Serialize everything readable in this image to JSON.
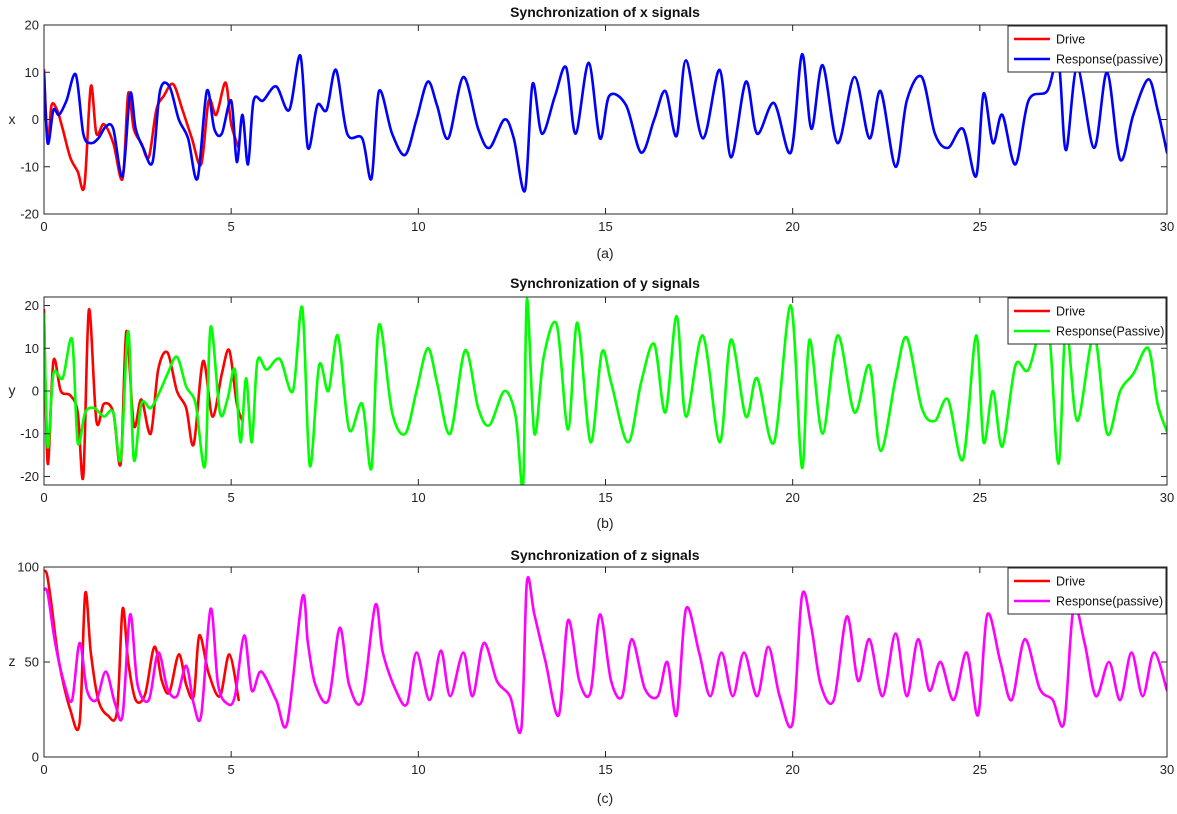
{
  "figure": {
    "panels": [
      {
        "title": "Synchronization of x signals",
        "ylabel": "x",
        "caption": "(a)",
        "ylim": [
          -20,
          20
        ],
        "yticks": [
          -20,
          -10,
          0,
          10,
          20
        ],
        "xlim": [
          0,
          30
        ],
        "xticks": [
          0,
          5,
          10,
          15,
          20,
          25,
          30
        ],
        "legend": [
          {
            "label": "Drive",
            "color": "#ff0000"
          },
          {
            "label": "Response(passive)",
            "color": "#0000ff"
          }
        ]
      },
      {
        "title": "Synchronization of y signals",
        "ylabel": "y",
        "caption": "(b)",
        "ylim": [
          -22,
          22
        ],
        "yticks": [
          -20,
          -10,
          0,
          10,
          20
        ],
        "xlim": [
          0,
          30
        ],
        "xticks": [
          0,
          5,
          10,
          15,
          20,
          25,
          30
        ],
        "legend": [
          {
            "label": "Drive",
            "color": "#ff0000"
          },
          {
            "label": "Response(Passive)",
            "color": "#00ff00"
          }
        ]
      },
      {
        "title": "Synchronization of z signals",
        "ylabel": "z",
        "caption": "(c)",
        "ylim": [
          0,
          100
        ],
        "yticks": [
          0,
          50,
          100
        ],
        "xlim": [
          0,
          30
        ],
        "xticks": [
          0,
          5,
          10,
          15,
          20,
          25,
          30
        ],
        "legend": [
          {
            "label": "Drive",
            "color": "#ff0000"
          },
          {
            "label": "Response(passive)",
            "color": "#ff00ff"
          }
        ]
      }
    ]
  },
  "chart_data": [
    {
      "type": "line",
      "title": "Synchronization of x signals",
      "xlabel": "",
      "ylabel": "x",
      "xlim": [
        0,
        30
      ],
      "ylim": [
        -20,
        20
      ],
      "grid": false,
      "legend_position": "top-right",
      "series": [
        {
          "name": "Drive",
          "color": "#ff0000",
          "x": [
            0,
            0.1,
            0.2,
            0.35,
            0.5,
            0.7,
            0.9,
            1.08,
            1.25,
            1.4,
            1.6,
            1.85,
            2.1,
            2.25,
            2.4,
            2.6,
            2.8,
            3.0,
            3.2,
            3.45,
            3.7,
            3.95,
            4.2,
            4.4,
            4.6,
            4.85,
            5.0,
            5.2
          ],
          "y": [
            10.5,
            -5,
            3,
            2,
            -2,
            -8,
            -11,
            -14,
            7,
            -3,
            -1,
            -5,
            -12.5,
            5.5,
            -2,
            -5,
            -8,
            2,
            5,
            7.5,
            2,
            -4,
            -9.5,
            4,
            1,
            7.8,
            -1,
            -6
          ]
        },
        {
          "name": "Response(passive)",
          "color": "#0000ff",
          "x": [
            0,
            0.1,
            0.25,
            0.4,
            0.6,
            0.85,
            1.05,
            1.25,
            1.45,
            1.65,
            1.85,
            2.1,
            2.3,
            2.45,
            2.65,
            2.9,
            3.1,
            3.35,
            3.6,
            3.85,
            4.1,
            4.35,
            4.55,
            4.75,
            5.0,
            5.15,
            5.3,
            5.45,
            5.6,
            5.85,
            6.2,
            6.55,
            6.85,
            7.05,
            7.3,
            7.55,
            7.8,
            8.1,
            8.5,
            8.75,
            8.95,
            9.3,
            9.65,
            9.95,
            10.25,
            10.5,
            10.8,
            11.2,
            11.6,
            11.9,
            12.3,
            12.55,
            12.85,
            13.05,
            13.3,
            13.65,
            13.95,
            14.2,
            14.55,
            14.85,
            15.1,
            15.55,
            15.95,
            16.3,
            16.6,
            16.9,
            17.15,
            17.6,
            18.05,
            18.35,
            18.75,
            19.05,
            19.5,
            19.95,
            20.25,
            20.5,
            20.8,
            21.2,
            21.65,
            22.05,
            22.35,
            22.75,
            23.05,
            23.45,
            23.8,
            24.15,
            24.55,
            24.9,
            25.1,
            25.35,
            25.6,
            25.95,
            26.3,
            26.8,
            27.1,
            27.3,
            27.6,
            28.05,
            28.4,
            28.75,
            29.1,
            29.5,
            29.75,
            30.0
          ],
          "y": [
            10,
            -5,
            2,
            1,
            4,
            9.5,
            -3,
            -5,
            -4,
            -1.5,
            -2,
            -12,
            5.5,
            -2,
            -6,
            -9,
            6,
            7,
            0,
            -4,
            -12.5,
            6,
            -2,
            -3,
            4,
            -9,
            1,
            -9.5,
            4,
            4,
            7,
            2,
            13.5,
            -6,
            3,
            2,
            10.5,
            -3,
            -4,
            -12.5,
            6,
            -3,
            -7.5,
            0,
            8,
            3,
            -4,
            9,
            -2,
            -6,
            0,
            -4,
            -15,
            7.5,
            -3,
            5,
            11,
            -3,
            12,
            -4,
            5,
            3,
            -7,
            0,
            6,
            -3.5,
            12.5,
            -4,
            10.5,
            -8,
            8,
            -3,
            3.5,
            -7,
            13.8,
            -2,
            11.5,
            -5,
            9,
            -4,
            6,
            -10,
            4,
            9,
            -3,
            -6,
            -2,
            -12,
            5.5,
            -5,
            1,
            -9.5,
            4,
            6,
            12.5,
            -6.5,
            11,
            -6,
            10,
            -8.5,
            1,
            8.5,
            2,
            -7
          ]
        }
      ]
    },
    {
      "type": "line",
      "title": "Synchronization of y signals",
      "xlabel": "",
      "ylabel": "y",
      "xlim": [
        0,
        30
      ],
      "ylim": [
        -22,
        22
      ],
      "grid": false,
      "legend_position": "top-right",
      "series": [
        {
          "name": "Drive",
          "color": "#ff0000",
          "x": [
            0,
            0.1,
            0.25,
            0.45,
            0.7,
            0.9,
            1.05,
            1.2,
            1.4,
            1.6,
            1.85,
            2.05,
            2.2,
            2.4,
            2.6,
            2.85,
            3.05,
            3.3,
            3.55,
            3.8,
            4.0,
            4.25,
            4.5,
            4.75,
            4.95,
            5.15,
            5.3
          ],
          "y": [
            19,
            -17,
            7,
            0,
            -1,
            -5,
            -20,
            19,
            -7,
            -3,
            -5,
            -17,
            14,
            -8,
            -2,
            -10,
            5,
            9,
            0,
            -4,
            -12.5,
            7,
            -6,
            4,
            9.5,
            -3,
            -7
          ]
        },
        {
          "name": "Response(Passive)",
          "color": "#00ff00",
          "x": [
            0,
            0.1,
            0.25,
            0.5,
            0.75,
            0.9,
            1.1,
            1.35,
            1.6,
            1.85,
            2.05,
            2.25,
            2.4,
            2.6,
            2.85,
            3.1,
            3.3,
            3.55,
            3.8,
            4.05,
            4.3,
            4.45,
            4.7,
            4.9,
            5.1,
            5.25,
            5.4,
            5.55,
            5.7,
            5.95,
            6.3,
            6.65,
            6.9,
            7.1,
            7.35,
            7.6,
            7.85,
            8.15,
            8.5,
            8.75,
            8.95,
            9.3,
            9.65,
            9.95,
            10.25,
            10.5,
            10.85,
            11.25,
            11.6,
            11.9,
            12.3,
            12.6,
            12.8,
            12.9,
            13.1,
            13.35,
            13.7,
            14.0,
            14.25,
            14.6,
            14.9,
            15.15,
            15.6,
            15.95,
            16.3,
            16.6,
            16.9,
            17.15,
            17.6,
            18.05,
            18.35,
            18.75,
            19.05,
            19.5,
            19.95,
            20.25,
            20.45,
            20.8,
            21.2,
            21.65,
            22.05,
            22.35,
            22.75,
            23.05,
            23.45,
            23.8,
            24.15,
            24.55,
            24.9,
            25.1,
            25.35,
            25.6,
            25.95,
            26.3,
            26.8,
            27.1,
            27.3,
            27.6,
            28.05,
            28.4,
            28.75,
            29.1,
            29.5,
            29.75,
            30.0
          ],
          "y": [
            18,
            -13,
            4,
            3,
            12,
            -12,
            -5,
            -4,
            -6,
            -5,
            -16,
            14,
            -16,
            -3,
            -4,
            0,
            4,
            8,
            1,
            -3,
            -17.5,
            15,
            -5,
            -2,
            5,
            -12,
            3,
            -12,
            7,
            5,
            7.5,
            0,
            19.5,
            -17.5,
            6,
            0,
            13,
            -9,
            -3,
            -18,
            15.5,
            -5,
            -10,
            0,
            10,
            2,
            -10,
            9.5,
            -4,
            -8,
            0,
            -6,
            -22,
            21.5,
            -10,
            8,
            15.5,
            -9,
            16,
            -12,
            9,
            2,
            -12,
            2,
            11,
            -5,
            17.5,
            -6,
            13,
            -12,
            12,
            -6,
            3,
            -12,
            20,
            -18,
            12,
            -10,
            13,
            -5,
            6,
            -14,
            3,
            12.5,
            -4,
            -7,
            -2,
            -16,
            13,
            -12,
            0,
            -13,
            6,
            5,
            17,
            -17,
            15.5,
            -7,
            13,
            -10,
            0,
            4,
            10,
            -3,
            -9.5
          ]
        }
      ]
    },
    {
      "type": "line",
      "title": "Synchronization of z signals",
      "xlabel": "",
      "ylabel": "z",
      "xlim": [
        0,
        30
      ],
      "ylim": [
        0,
        100
      ],
      "grid": false,
      "legend_position": "top-right",
      "series": [
        {
          "name": "Drive",
          "color": "#ff0000",
          "x": [
            0,
            0.08,
            0.2,
            0.4,
            0.7,
            0.95,
            1.1,
            1.25,
            1.45,
            1.7,
            1.95,
            2.1,
            2.25,
            2.45,
            2.7,
            2.95,
            3.15,
            3.35,
            3.6,
            3.8,
            4.0,
            4.15,
            4.4,
            4.7,
            4.95,
            5.2
          ],
          "y": [
            98,
            96,
            80,
            50,
            25,
            18,
            86,
            55,
            30,
            22,
            24,
            78,
            50,
            30,
            33,
            58,
            40,
            34,
            54,
            38,
            32,
            64,
            44,
            32,
            54,
            30
          ]
        },
        {
          "name": "Response(passive)",
          "color": "#ff00ff",
          "x": [
            0,
            0.1,
            0.3,
            0.55,
            0.75,
            0.95,
            1.15,
            1.4,
            1.65,
            1.9,
            2.1,
            2.3,
            2.5,
            2.8,
            3.05,
            3.3,
            3.55,
            3.8,
            4.0,
            4.2,
            4.45,
            4.65,
            4.9,
            5.1,
            5.35,
            5.55,
            5.8,
            6.2,
            6.5,
            6.9,
            7.05,
            7.25,
            7.6,
            7.9,
            8.15,
            8.5,
            8.85,
            9.05,
            9.4,
            9.7,
            9.95,
            10.3,
            10.6,
            10.85,
            11.2,
            11.45,
            11.75,
            12.1,
            12.45,
            12.75,
            12.9,
            13.1,
            13.4,
            13.75,
            14.0,
            14.3,
            14.6,
            14.85,
            15.15,
            15.45,
            15.7,
            16.05,
            16.4,
            16.65,
            16.9,
            17.15,
            17.5,
            17.8,
            18.1,
            18.4,
            18.7,
            19.05,
            19.35,
            19.65,
            20.0,
            20.25,
            20.5,
            20.75,
            21.1,
            21.45,
            21.75,
            22.05,
            22.4,
            22.75,
            23.05,
            23.35,
            23.65,
            23.95,
            24.3,
            24.65,
            24.95,
            25.2,
            25.55,
            25.85,
            26.2,
            26.6,
            26.95,
            27.25,
            27.5,
            27.8,
            28.1,
            28.45,
            28.75,
            29.05,
            29.35,
            29.65,
            30.0
          ],
          "y": [
            88,
            86,
            60,
            38,
            30,
            60,
            35,
            30,
            45,
            28,
            22,
            75,
            38,
            30,
            55,
            36,
            32,
            48,
            28,
            22,
            78,
            38,
            28,
            32,
            64,
            35,
            45,
            30,
            18,
            84,
            60,
            38,
            30,
            68,
            38,
            30,
            80,
            55,
            35,
            28,
            55,
            30,
            56,
            32,
            55,
            32,
            60,
            40,
            32,
            15,
            92,
            75,
            50,
            22,
            72,
            40,
            34,
            75,
            40,
            32,
            62,
            36,
            32,
            50,
            22,
            78,
            55,
            32,
            55,
            32,
            55,
            32,
            58,
            32,
            18,
            85,
            68,
            38,
            30,
            74,
            40,
            62,
            32,
            65,
            32,
            62,
            35,
            50,
            30,
            55,
            22,
            75,
            50,
            30,
            62,
            36,
            30,
            18,
            78,
            60,
            32,
            50,
            30,
            55,
            32,
            55,
            35
          ]
        }
      ]
    }
  ]
}
